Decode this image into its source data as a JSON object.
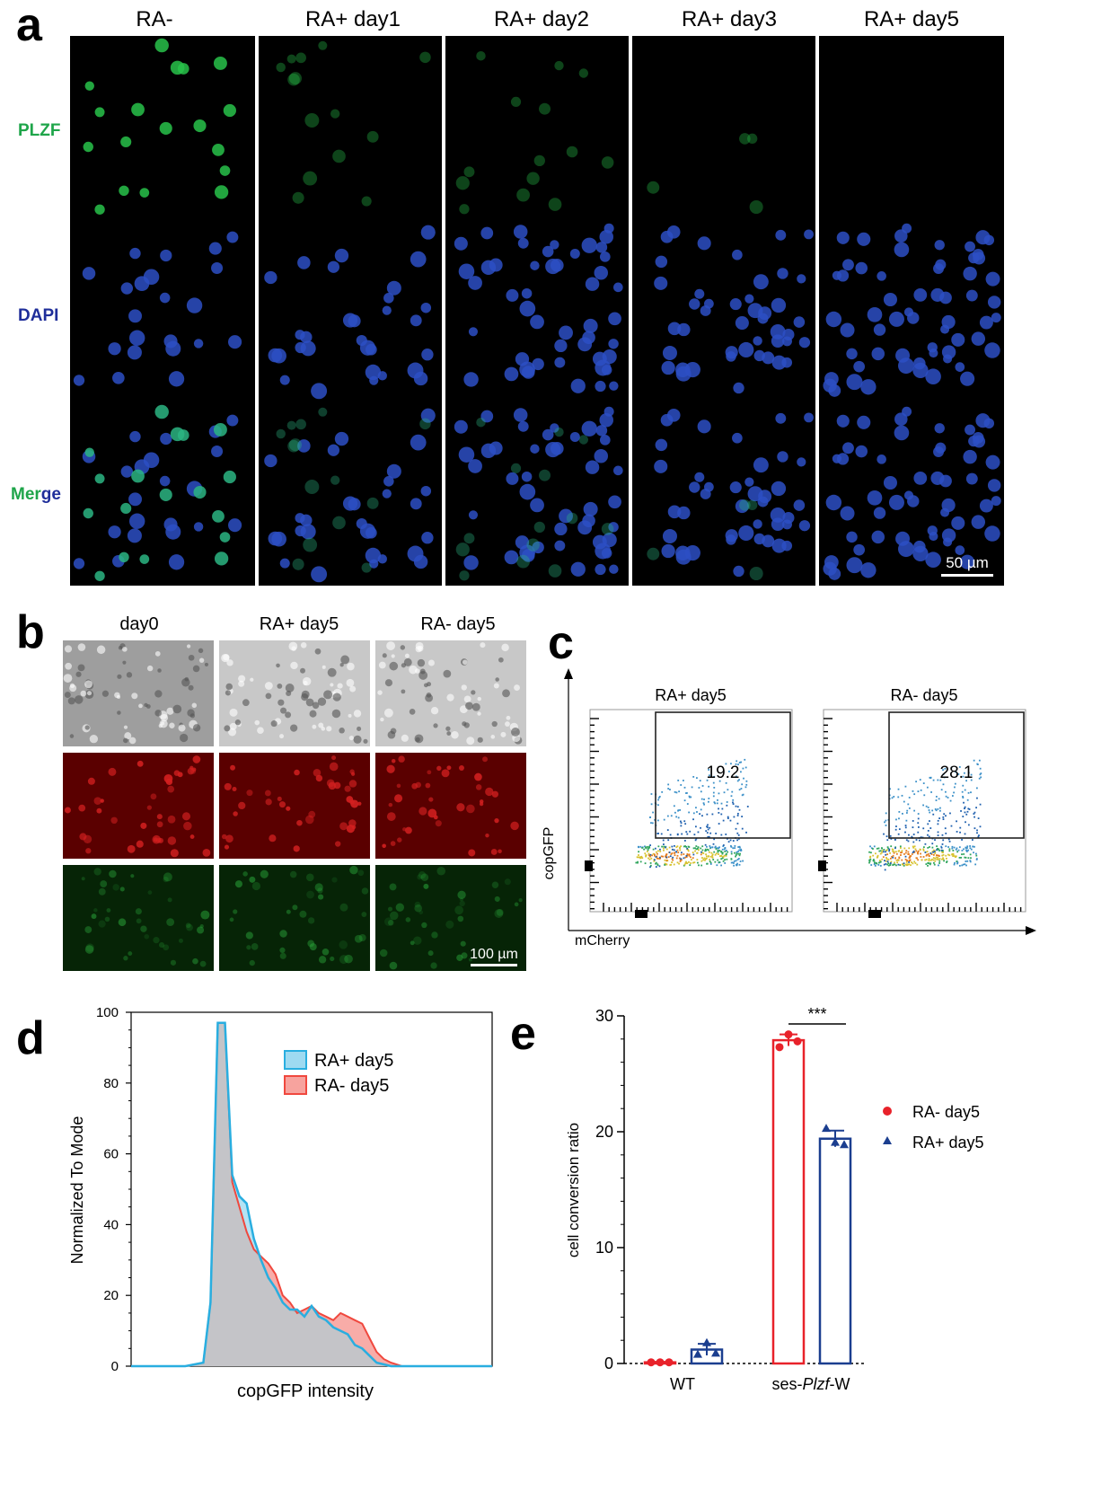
{
  "panel_a": {
    "letter": "a",
    "columns": [
      "RA-",
      "RA+ day1",
      "RA+ day2",
      "RA+ day3",
      "RA+ day5"
    ],
    "rows": [
      {
        "label": "PLZF",
        "color": "#1fa54a"
      },
      {
        "label": "DAPI",
        "color": "#1f2e9a"
      },
      {
        "label": "Merge",
        "color": "#1fa54a"
      }
    ],
    "merge_label_tail": "ge",
    "scale_bar": "50 µm"
  },
  "panel_b": {
    "letter": "b",
    "columns": [
      "day0",
      "RA+ day5",
      "RA- day5"
    ],
    "scale_bar": "100 µm"
  },
  "panel_c": {
    "letter": "c",
    "plots": [
      {
        "title": "RA+ day5",
        "gate_value": "19.2"
      },
      {
        "title": "RA- day5",
        "gate_value": "28.1"
      }
    ],
    "ylabel": "copGFP",
    "xlabel": "mCherry"
  },
  "panel_d": {
    "letter": "d",
    "ylabel": "Normalized To Mode",
    "xlabel": "copGFP intensity",
    "legend": [
      "RA+ day5",
      "RA-  day5"
    ],
    "colors": {
      "ra_plus": "#29aee0",
      "ra_minus": "#f0483e",
      "overlap": "#c4c4c8"
    }
  },
  "panel_e": {
    "letter": "e",
    "ylabel": "cell conversion ratio",
    "categories": [
      "WT",
      "ses-",
      "Plzf",
      "-W"
    ],
    "significance": "***",
    "legend": [
      "RA-  day5",
      "RA+ day5"
    ],
    "colors": {
      "ra_minus": "#e8222a",
      "ra_plus": "#1b3e8f"
    }
  },
  "chart_data": [
    {
      "type": "area",
      "panel": "d",
      "xlabel": "copGFP intensity",
      "ylabel": "Normalized To Mode",
      "ylim": [
        0,
        100
      ],
      "yticks": [
        0,
        20,
        40,
        60,
        80,
        100
      ],
      "x": [
        0,
        5,
        10,
        15,
        20,
        22,
        24,
        26,
        28,
        30,
        32,
        34,
        36,
        38,
        40,
        42,
        44,
        46,
        48,
        50,
        52,
        54,
        56,
        58,
        60,
        62,
        64,
        66,
        68,
        70,
        72,
        75,
        80,
        90,
        100
      ],
      "series": [
        {
          "name": "RA+ day5",
          "values": [
            0,
            0,
            0,
            0,
            1,
            18,
            97,
            97,
            54,
            48,
            46,
            36,
            30,
            25,
            22,
            18,
            16,
            16,
            14,
            17,
            14,
            13,
            11,
            10,
            9,
            6,
            5,
            3,
            1,
            0.5,
            0,
            0,
            0,
            0,
            0
          ]
        },
        {
          "name": "RA-  day5",
          "values": [
            0,
            0,
            0,
            0,
            1,
            18,
            97,
            97,
            52,
            45,
            38,
            33,
            31,
            29,
            26,
            20,
            18,
            15,
            16,
            17,
            15,
            14,
            13,
            15,
            14,
            13,
            12,
            8,
            4,
            2,
            1,
            0,
            0,
            0,
            0
          ]
        }
      ]
    },
    {
      "type": "bar",
      "panel": "e",
      "categories": [
        "WT",
        "ses-Plzf-W"
      ],
      "ylabel": "cell conversion ratio",
      "ylim": [
        0,
        30
      ],
      "yticks": [
        0,
        10,
        20,
        30
      ],
      "series": [
        {
          "name": "RA-  day5",
          "values": [
            0.1,
            27.9
          ],
          "points": [
            [
              0.1,
              0.1,
              0.1
            ],
            [
              27.3,
              28.4,
              27.8
            ]
          ],
          "sd": [
            0.05,
            0.5
          ]
        },
        {
          "name": "RA+ day5",
          "values": [
            1.2,
            19.4
          ],
          "points": [
            [
              0.8,
              1.8,
              0.9
            ],
            [
              20.3,
              19.1,
              18.9
            ]
          ],
          "sd": [
            0.5,
            0.7
          ]
        }
      ]
    }
  ]
}
